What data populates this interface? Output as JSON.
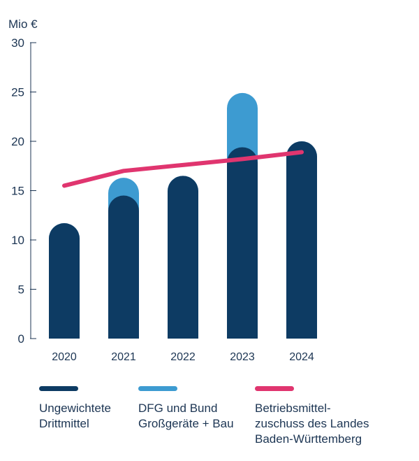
{
  "chart_data": {
    "type": "bar",
    "unit_label": "Mio €",
    "categories": [
      "2020",
      "2021",
      "2022",
      "2023",
      "2024"
    ],
    "ylim": [
      0,
      30
    ],
    "yticks": [
      0,
      5,
      10,
      15,
      20,
      25,
      30
    ],
    "series": [
      {
        "name": "Ungewichtete Drittmittel",
        "type": "bar",
        "color": "#0d3b63",
        "values": [
          11.7,
          14.5,
          16.5,
          19.4,
          20.0
        ]
      },
      {
        "name": "DFG und Bund Großgeräte + Bau",
        "type": "bar",
        "color": "#3d9bd1",
        "values": [
          11.7,
          16.3,
          16.5,
          24.9,
          20.0
        ]
      },
      {
        "name": "Betriebsmittelzuschuss des Landes Baden-Württemberg",
        "type": "line",
        "color": "#e0356f",
        "values": [
          15.5,
          17.0,
          17.6,
          18.2,
          18.9
        ]
      }
    ]
  },
  "legend": [
    {
      "label": "Ungewichtete\nDrittmittel",
      "color": "#0d3b63"
    },
    {
      "label": "DFG und Bund\nGroßgeräte + Bau",
      "color": "#3d9bd1"
    },
    {
      "label": "Betriebsmittel-\nzuschuss des Landes\nBaden-Württemberg",
      "color": "#e0356f"
    }
  ]
}
